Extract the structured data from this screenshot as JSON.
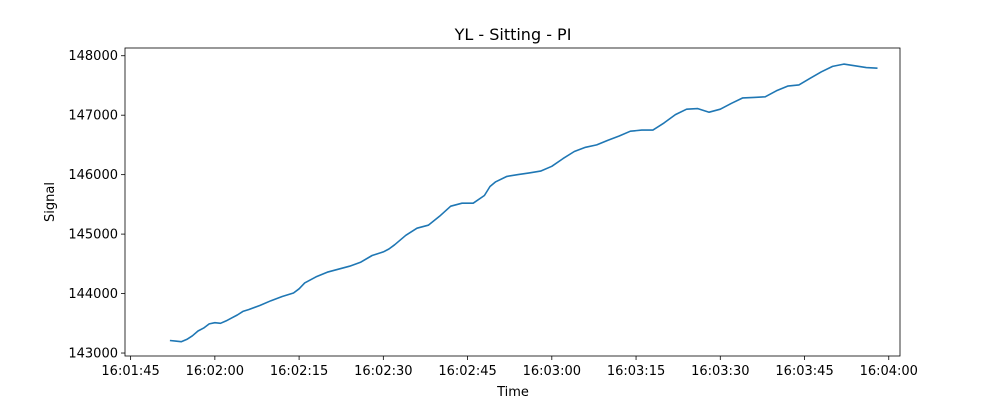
{
  "chart_data": {
    "type": "line",
    "title": "YL - Sitting - PI",
    "xlabel": "Time",
    "ylabel": "Signal",
    "xlim": [
      "16:01:44",
      "16:04:02"
    ],
    "ylim": [
      142950,
      148130
    ],
    "x_ticks": [
      "16:01:45",
      "16:02:00",
      "16:02:15",
      "16:02:30",
      "16:02:45",
      "16:03:00",
      "16:03:15",
      "16:03:30",
      "16:03:45",
      "16:04:00"
    ],
    "y_ticks": [
      143000,
      144000,
      145000,
      146000,
      147000,
      148000
    ],
    "grid": false,
    "color": "#1f77b4",
    "series": [
      {
        "x": [
          "16:01:52",
          "16:01:53",
          "16:01:54",
          "16:01:55",
          "16:01:56",
          "16:01:57",
          "16:01:58",
          "16:01:59",
          "16:02:00",
          "16:02:01",
          "16:02:02",
          "16:02:03",
          "16:02:04",
          "16:02:05",
          "16:02:06",
          "16:02:08",
          "16:02:10",
          "16:02:12",
          "16:02:14",
          "16:02:15",
          "16:02:16",
          "16:02:18",
          "16:02:20",
          "16:02:22",
          "16:02:24",
          "16:02:26",
          "16:02:28",
          "16:02:30",
          "16:02:31",
          "16:02:32",
          "16:02:34",
          "16:02:36",
          "16:02:38",
          "16:02:40",
          "16:02:42",
          "16:02:44",
          "16:02:46",
          "16:02:48",
          "16:02:49",
          "16:02:50",
          "16:02:52",
          "16:02:54",
          "16:02:56",
          "16:02:58",
          "16:03:00",
          "16:03:02",
          "16:03:04",
          "16:03:06",
          "16:03:08",
          "16:03:10",
          "16:03:12",
          "16:03:14",
          "16:03:16",
          "16:03:18",
          "16:03:20",
          "16:03:22",
          "16:03:24",
          "16:03:26",
          "16:03:28",
          "16:03:30",
          "16:03:32",
          "16:03:34",
          "16:03:36",
          "16:03:38",
          "16:03:40",
          "16:03:42",
          "16:03:44",
          "16:03:46",
          "16:03:48",
          "16:03:50",
          "16:03:52",
          "16:03:54",
          "16:03:56",
          "16:03:58"
        ],
        "values": [
          143210,
          143200,
          143190,
          143230,
          143290,
          143370,
          143420,
          143490,
          143510,
          143500,
          143540,
          143590,
          143640,
          143700,
          143730,
          143800,
          143880,
          143950,
          144010,
          144080,
          144180,
          144280,
          144360,
          144410,
          144460,
          144530,
          144640,
          144700,
          144750,
          144820,
          144980,
          145100,
          145150,
          145300,
          145470,
          145520,
          145520,
          145650,
          145800,
          145880,
          145970,
          146000,
          146030,
          146060,
          146140,
          146270,
          146390,
          146460,
          146500,
          146580,
          146650,
          146730,
          146750,
          146750,
          146870,
          147010,
          147100,
          147110,
          147050,
          147100,
          147200,
          147290,
          147300,
          147310,
          147410,
          147490,
          147510,
          147620,
          147730,
          147820,
          147860,
          147830,
          147800,
          147790
        ]
      }
    ]
  }
}
